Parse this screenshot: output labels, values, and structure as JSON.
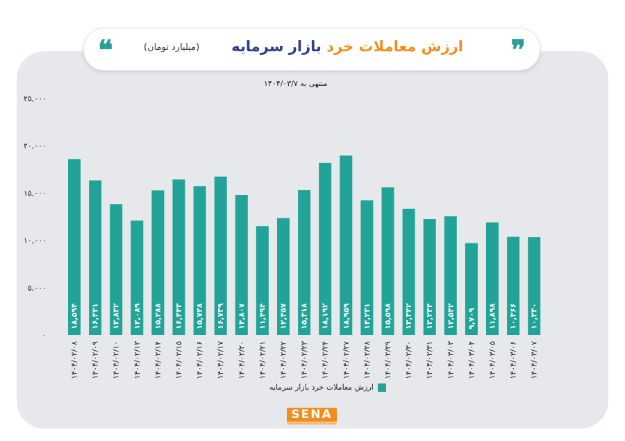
{
  "header": {
    "title_part_a": "بازار سرمایه",
    "title_part_b": "ارزش معاملات خرد",
    "unit": "(میلیارد تومان)"
  },
  "colors": {
    "bar": "#21a497",
    "accent_orange": "#f28c1e",
    "accent_navy": "#2f3a8f",
    "quote": "#2a9d95"
  },
  "icons": {
    "left": "quote-icon",
    "right": "quote-icon"
  },
  "logo": "SENA",
  "chart_data": {
    "type": "bar",
    "subtitle": "منتهی به ۱۴۰۴/۰۳/۷",
    "categories": [
      "۱۴۰۴/۰۲/۰۸",
      "۱۴۰۴/۰۲/۰۹",
      "۱۴۰۴/۰۲/۱۰",
      "۱۴۰۴/۰۲/۱۳",
      "۱۴۰۴/۰۲/۱۴",
      "۱۴۰۴/۰۲/۱۵",
      "۱۴۰۴/۰۲/۱۶",
      "۱۴۰۴/۰۲/۱۷",
      "۱۴۰۴/۰۲/۲۰",
      "۱۴۰۴/۰۲/۲۱",
      "۱۴۰۴/۰۲/۲۲",
      "۱۴۰۴/۰۲/۲۳",
      "۱۴۰۴/۰۲/۲۴",
      "۱۴۰۴/۰۲/۲۷",
      "۱۴۰۴/۰۲/۲۸",
      "۱۴۰۴/۰۲/۲۹",
      "۱۴۰۴/۰۲/۳۰",
      "۱۴۰۴/۰۲/۳۱",
      "۱۴۰۴/۰۳/۰۳",
      "۱۴۰۴/۰۳/۰۴",
      "۱۴۰۴/۰۳/۰۵",
      "۱۴۰۴/۰۳/۰۶",
      "۱۴۰۴/۰۳/۰۷"
    ],
    "values": [
      18594,
      16331,
      13832,
      12089,
      15288,
      16443,
      15738,
      16739,
      14807,
      11494,
      12357,
      15318,
      18192,
      18959,
      14231,
      15598,
      13342,
      12244,
      12542,
      9709,
      11898,
      10366,
      10330
    ],
    "value_labels": [
      "۱۸,۵۹۴",
      "۱۶,۳۳۱",
      "۱۳,۸۳۲",
      "۱۲,۰۸۹",
      "۱۵,۲۸۸",
      "۱۶,۴۴۳",
      "۱۵,۷۳۸",
      "۱۶,۷۳۹",
      "۱۴,۸۰۷",
      "۱۱,۴۹۴",
      "۱۲,۳۵۷",
      "۱۵,۳۱۸",
      "۱۸,۱۹۲",
      "۱۸,۹۵۹",
      "۱۴,۲۳۱",
      "۱۵,۵۹۸",
      "۱۳,۳۴۲",
      "۱۲,۲۴۴",
      "۱۲,۵۴۲",
      "۹,۷۰۹",
      "۱۱,۸۹۸",
      "۱۰,۳۶۶",
      "۱۰,۳۳۰"
    ],
    "bar_heights_approx": [
      18594,
      16331,
      13832,
      12089,
      15288,
      16443,
      15738,
      16739,
      14807,
      11494,
      12357,
      15318,
      18192,
      18959,
      14231,
      15598,
      13342,
      12244,
      12542,
      9709,
      11898,
      10366,
      10330
    ],
    "ylim": [
      0,
      25000
    ],
    "yticks": [
      0,
      5000,
      10000,
      15000,
      20000,
      25000
    ],
    "ytick_labels": [
      "۰",
      "۵,۰۰۰",
      "۱۰,۰۰۰",
      "۱۵,۰۰۰",
      "۲۰,۰۰۰",
      "۲۵,۰۰۰"
    ],
    "legend": "ارزش معاملات خرد بازار سرمایه",
    "legend_position": "bottom",
    "grid": false
  }
}
